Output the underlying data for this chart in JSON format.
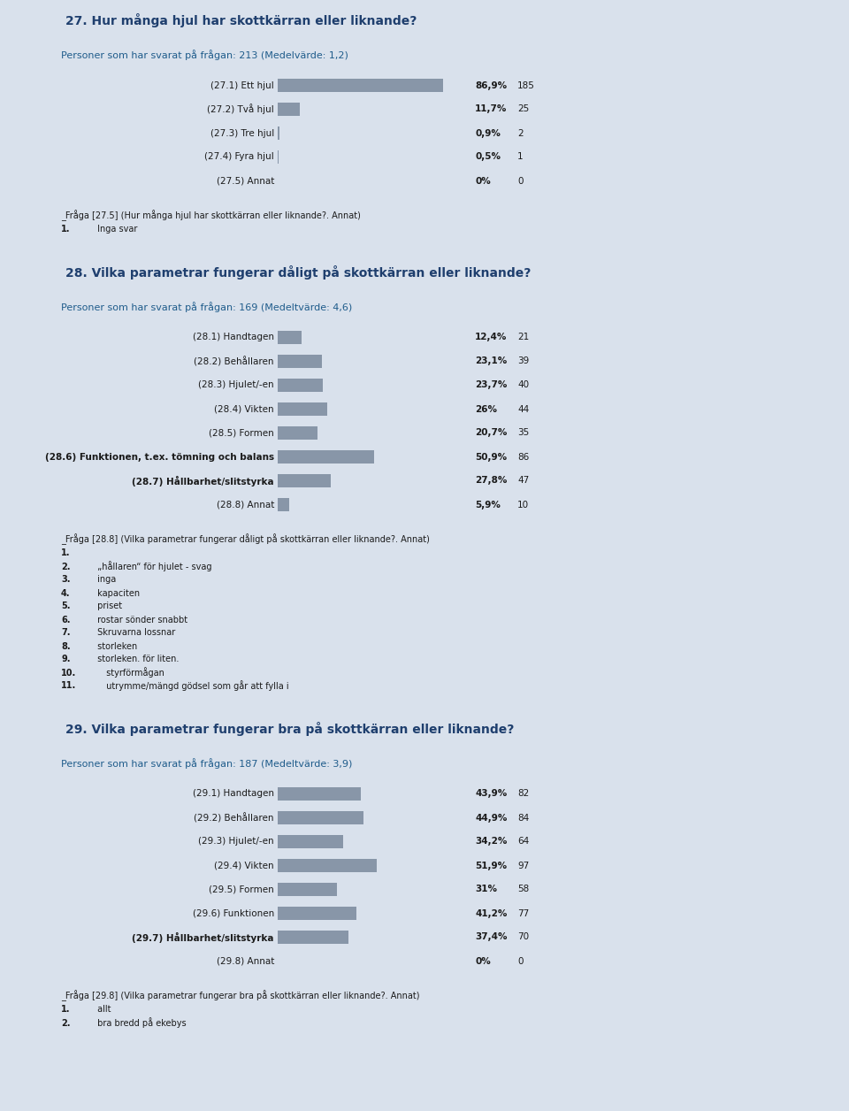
{
  "bg_color": "#d9e1ec",
  "panel_bg": "#f2efe3",
  "bar_filled": "#8896a8",
  "bar_empty": "#ddd8c2",
  "section_header_bg": "#c5cfdb",
  "section_title_color": "#1f3f6e",
  "panel_header_color": "#1f5c8b",
  "text_color": "#1a1a1a",
  "section1": {
    "title": "27. Hur många hjul har skottkärran eller liknande?",
    "subtitle": "Personer som har svarat på frågan: 213 (Medelvärde: 1,2)",
    "bars": [
      {
        "label": "(27.1) Ett hjul",
        "pct": 86.9,
        "count": 185,
        "pct_str": "86,9%"
      },
      {
        "label": "(27.2) Två hjul",
        "pct": 11.7,
        "count": 25,
        "pct_str": "11,7%"
      },
      {
        "label": "(27.3) Tre hjul",
        "pct": 0.9,
        "count": 2,
        "pct_str": "0,9%"
      },
      {
        "label": "(27.4) Fyra hjul",
        "pct": 0.5,
        "count": 1,
        "pct_str": "0,5%"
      },
      {
        "label": "(27.5) Annat",
        "pct": 0.0,
        "count": 0,
        "pct_str": "0%"
      }
    ],
    "footnote": "_Fråga [27.5] (Hur många hjul har skottkärran eller liknande?. Annat)",
    "footnote_bold": "27.5",
    "footnote_items": [
      "1. Inga svar"
    ]
  },
  "section2": {
    "title": "28. Vilka parametrar fungerar dåligt på skottkärran eller liknande?",
    "subtitle": "Personer som har svarat på frågan: 169 (Medeltvärde: 4,6)",
    "bars": [
      {
        "label": "(28.1) Handtagen",
        "pct": 12.4,
        "count": 21,
        "pct_str": "12,4%"
      },
      {
        "label": "(28.2) Behållaren",
        "pct": 23.1,
        "count": 39,
        "pct_str": "23,1%"
      },
      {
        "label": "(28.3) Hjulet/-en",
        "pct": 23.7,
        "count": 40,
        "pct_str": "23,7%"
      },
      {
        "label": "(28.4) Vikten",
        "pct": 26.0,
        "count": 44,
        "pct_str": "26%"
      },
      {
        "label": "(28.5) Formen",
        "pct": 20.7,
        "count": 35,
        "pct_str": "20,7%"
      },
      {
        "label": "(28.6) Funktionen, t.ex. tömning och balans",
        "pct": 50.9,
        "count": 86,
        "pct_str": "50,9%"
      },
      {
        "label": "(28.7) Hållbarhet/slitstyrka",
        "pct": 27.8,
        "count": 47,
        "pct_str": "27,8%"
      },
      {
        "label": "(28.8) Annat",
        "pct": 5.9,
        "count": 10,
        "pct_str": "5,9%"
      }
    ],
    "footnote": "_Fråga [28.8] (Vilka parametrar fungerar dåligt på skottkärran eller liknande?. Annat)",
    "footnote_bold": "28.8",
    "footnote_items": [
      "1.",
      "2. „hållaren“ för hjulet - svag",
      "3. inga",
      "4. kapaciten",
      "5. priset",
      "6. rostar sönder snabbt",
      "7. Skruvarna lossnar",
      "8. storleken",
      "9. storleken. för liten.",
      "10. styrförmågan",
      "11. utrymme/mängd gödsel som går att fylla i"
    ]
  },
  "section3": {
    "title": "29. Vilka parametrar fungerar bra på skottkärran eller liknande?",
    "subtitle": "Personer som har svarat på frågan: 187 (Medeltvärde: 3,9)",
    "bars": [
      {
        "label": "(29.1) Handtagen",
        "pct": 43.9,
        "count": 82,
        "pct_str": "43,9%"
      },
      {
        "label": "(29.2) Behållaren",
        "pct": 44.9,
        "count": 84,
        "pct_str": "44,9%"
      },
      {
        "label": "(29.3) Hjulet/-en",
        "pct": 34.2,
        "count": 64,
        "pct_str": "34,2%"
      },
      {
        "label": "(29.4) Vikten",
        "pct": 51.9,
        "count": 97,
        "pct_str": "51,9%"
      },
      {
        "label": "(29.5) Formen",
        "pct": 31.0,
        "count": 58,
        "pct_str": "31%"
      },
      {
        "label": "(29.6) Funktionen",
        "pct": 41.2,
        "count": 77,
        "pct_str": "41,2%"
      },
      {
        "label": "(29.7) Hållbarhet/slitstyrka",
        "pct": 37.4,
        "count": 70,
        "pct_str": "37,4%"
      },
      {
        "label": "(29.8) Annat",
        "pct": 0.0,
        "count": 0,
        "pct_str": "0%"
      }
    ],
    "footnote": "_Fråga [29.8] (Vilka parametrar fungerar bra på skottkärran eller liknande?. Annat)",
    "footnote_bold": "29.8",
    "footnote_items": [
      "1. allt",
      "2. bra bredd på ekebys"
    ]
  }
}
